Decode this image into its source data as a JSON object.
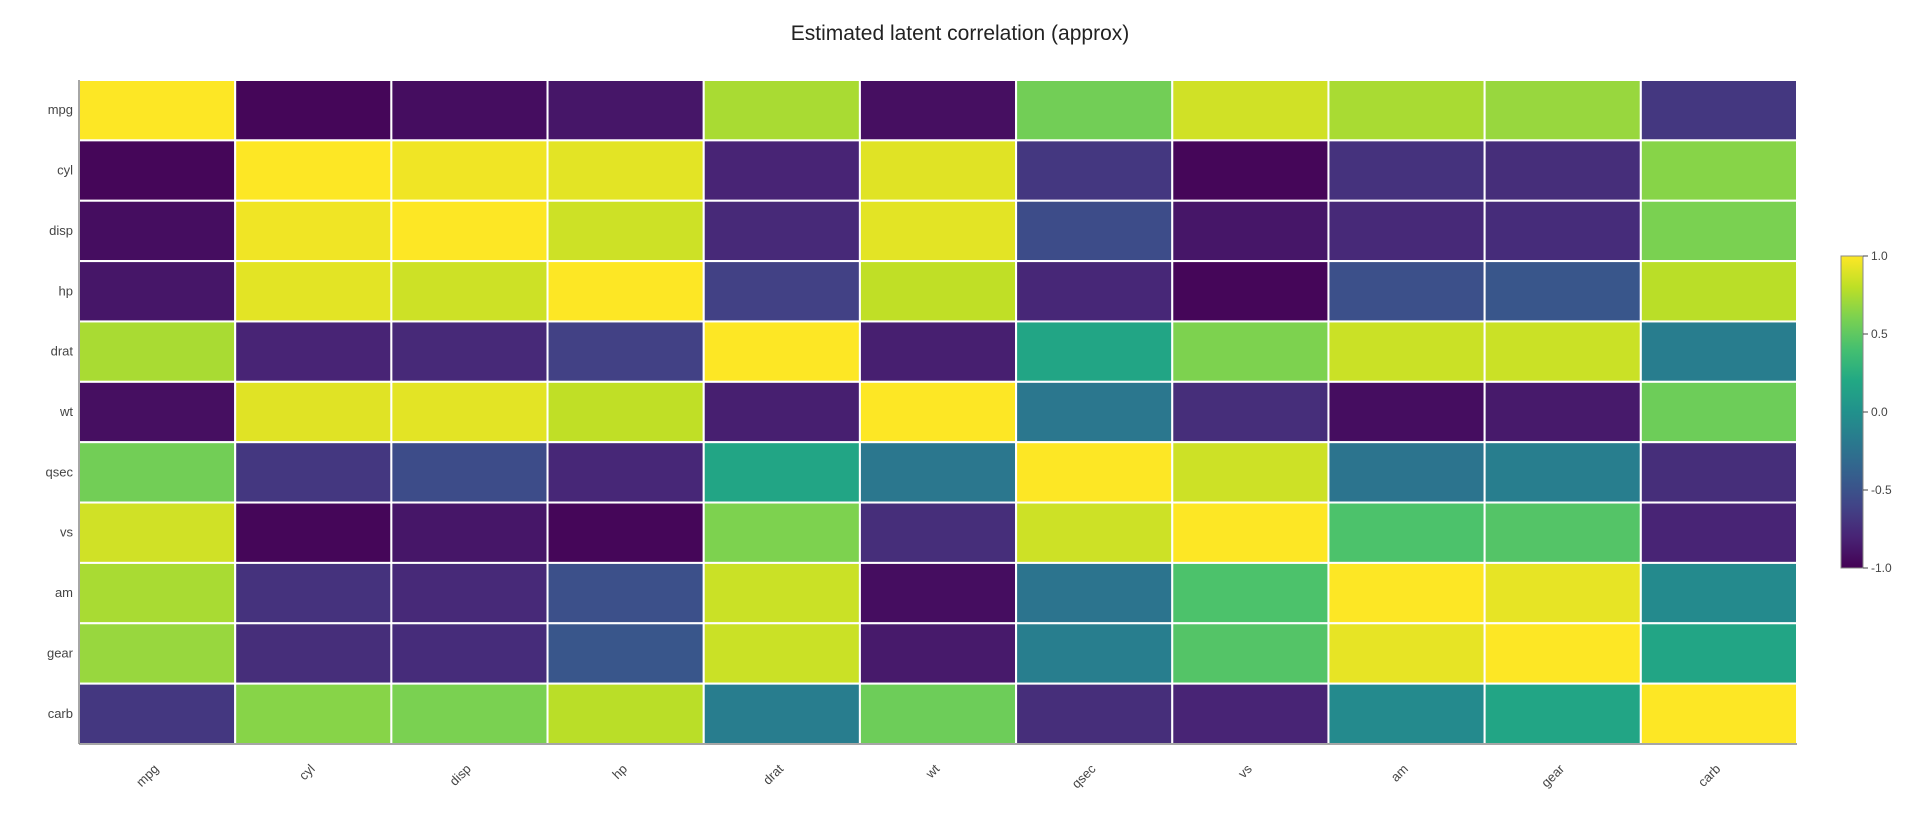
{
  "chart_data": {
    "type": "heatmap",
    "title": "Estimated latent correlation (approx)",
    "x": [
      "mpg",
      "cyl",
      "disp",
      "hp",
      "drat",
      "wt",
      "qsec",
      "vs",
      "am",
      "gear",
      "carb"
    ],
    "y": [
      "mpg",
      "cyl",
      "disp",
      "hp",
      "drat",
      "wt",
      "qsec",
      "vs",
      "am",
      "gear",
      "carb"
    ],
    "z": [
      [
        1.0,
        -0.97,
        -0.93,
        -0.88,
        0.74,
        -0.92,
        0.57,
        0.86,
        0.74,
        0.69,
        -0.68
      ],
      [
        -0.97,
        1.0,
        0.96,
        0.92,
        -0.8,
        0.91,
        -0.68,
        -0.97,
        -0.71,
        -0.74,
        0.64
      ],
      [
        -0.93,
        0.96,
        1.0,
        0.85,
        -0.77,
        0.92,
        -0.54,
        -0.88,
        -0.77,
        -0.75,
        0.6
      ],
      [
        -0.88,
        0.92,
        0.85,
        1.0,
        -0.62,
        0.81,
        -0.78,
        -0.97,
        -0.51,
        -0.47,
        0.79
      ],
      [
        0.74,
        -0.8,
        -0.77,
        -0.62,
        1.0,
        -0.83,
        0.17,
        0.61,
        0.84,
        0.84,
        -0.16
      ],
      [
        -0.92,
        0.91,
        0.92,
        0.81,
        -0.83,
        1.0,
        -0.21,
        -0.74,
        -0.93,
        -0.86,
        0.55
      ],
      [
        0.57,
        -0.68,
        -0.54,
        -0.78,
        0.17,
        -0.21,
        1.0,
        0.85,
        -0.23,
        -0.15,
        -0.74
      ],
      [
        0.86,
        -0.97,
        -0.88,
        -0.97,
        0.61,
        -0.74,
        0.85,
        1.0,
        0.43,
        0.46,
        -0.8
      ],
      [
        0.74,
        -0.71,
        -0.77,
        -0.51,
        0.84,
        -0.93,
        -0.23,
        0.43,
        1.0,
        0.93,
        -0.06
      ],
      [
        0.69,
        -0.74,
        -0.75,
        -0.47,
        0.84,
        -0.86,
        -0.15,
        0.46,
        0.93,
        1.0,
        0.17
      ],
      [
        -0.68,
        0.64,
        0.6,
        0.79,
        -0.16,
        0.55,
        -0.74,
        -0.8,
        -0.06,
        0.17,
        1.0
      ]
    ],
    "zmin": -1,
    "zmax": 1,
    "colorscale": "Viridis",
    "colorbar": {
      "ticks": [
        1,
        0.5,
        0,
        -0.5,
        -1
      ],
      "tick_labels": [
        "1.0",
        "0.5",
        "0.0",
        "-0.5",
        "-1.0"
      ]
    }
  }
}
